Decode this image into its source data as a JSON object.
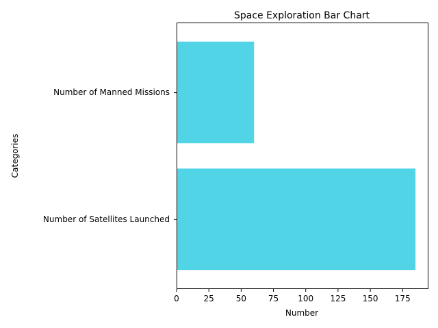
{
  "chart_data": {
    "type": "bar",
    "orientation": "horizontal",
    "title": "Space Exploration Bar Chart",
    "xlabel": "Number",
    "ylabel": "Categories",
    "categories": [
      "Number of Satellites Launched",
      "Number of Manned Missions"
    ],
    "values": [
      185,
      60
    ],
    "xlim": [
      0,
      195
    ],
    "xticks": [
      0,
      25,
      50,
      75,
      100,
      125,
      150,
      175
    ],
    "bar_color": "#50d4e6",
    "grid": false,
    "legend": "none"
  }
}
